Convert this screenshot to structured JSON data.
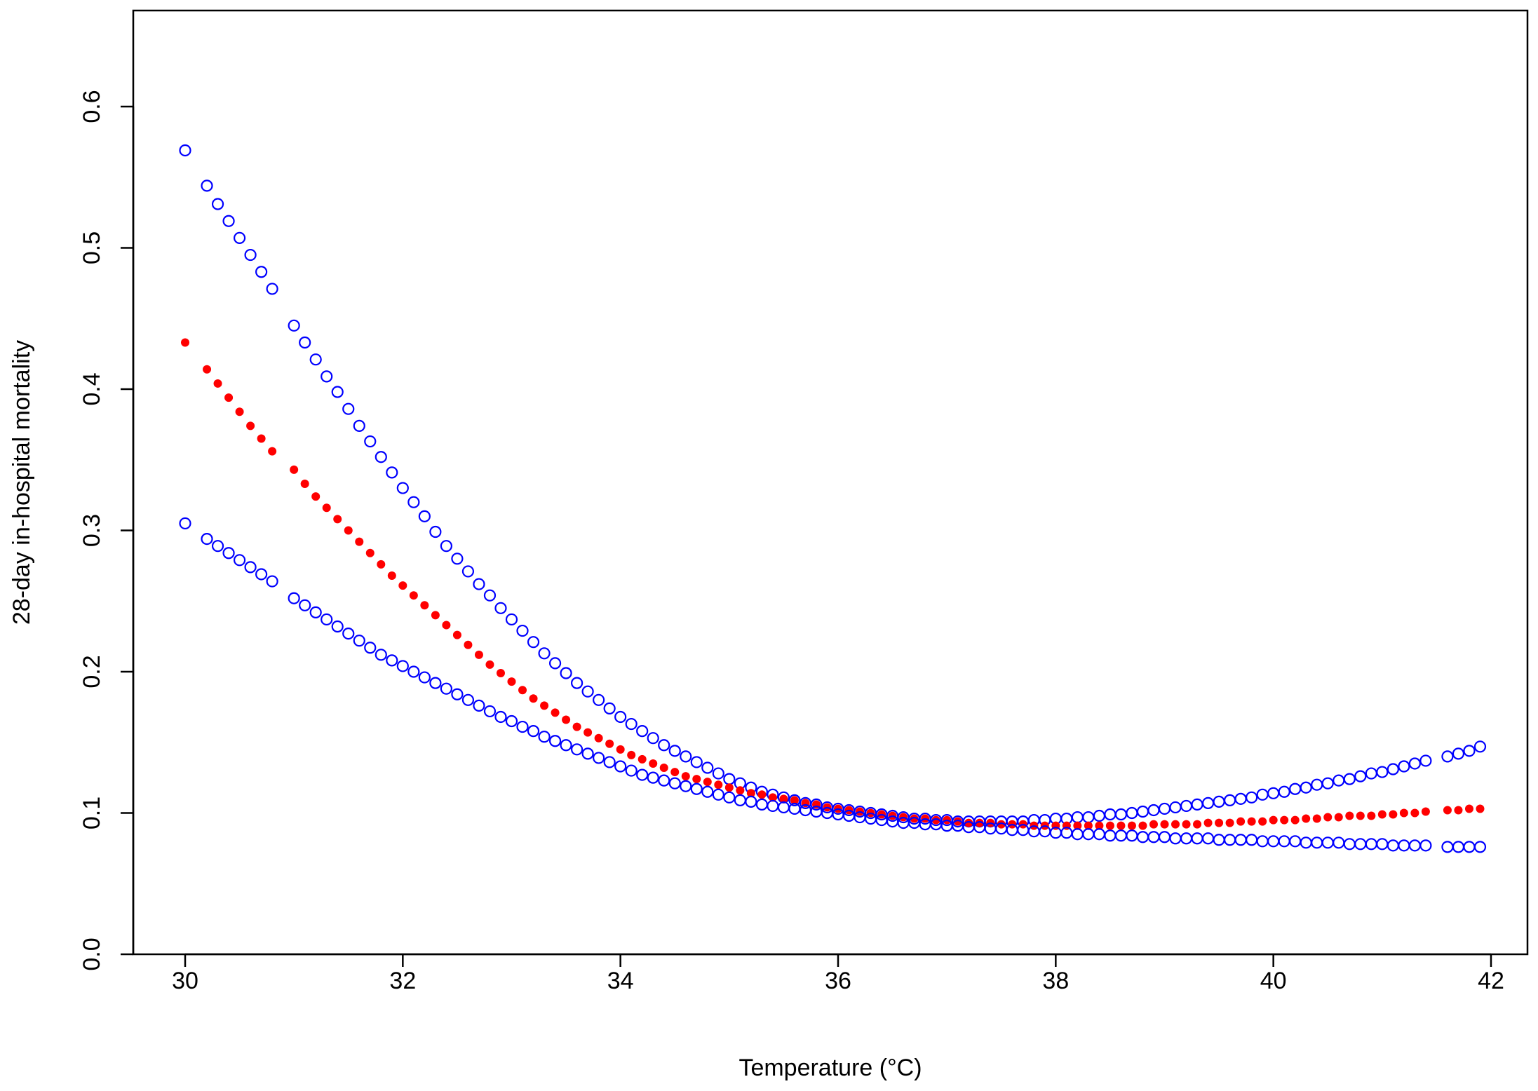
{
  "chart_data": {
    "type": "scatter",
    "title": "",
    "xlabel": "Temperature (°C)",
    "ylabel": "28-day in-hospital mortality",
    "xlim": [
      29.5,
      42.5
    ],
    "ylim": [
      0.0,
      0.66
    ],
    "x_ticks": [
      30,
      32,
      34,
      36,
      38,
      40,
      42
    ],
    "x_tick_labels": [
      "30",
      "32",
      "34",
      "36",
      "38",
      "40",
      "42"
    ],
    "y_ticks": [
      0.0,
      0.1,
      0.2,
      0.3,
      0.4,
      0.5,
      0.6
    ],
    "y_tick_labels": [
      "0.0",
      "0.1",
      "0.2",
      "0.3",
      "0.4",
      "0.5",
      "0.6"
    ],
    "grid": false,
    "legend": "none",
    "colors": {
      "upper_ci": "#0000ff",
      "estimate": "#ff0000",
      "lower_ci": "#0000ff"
    },
    "x": [
      30.0,
      30.2,
      30.3,
      30.4,
      30.5,
      30.6,
      30.7,
      30.8,
      31.0,
      31.1,
      31.2,
      31.3,
      31.4,
      31.5,
      31.6,
      31.7,
      31.8,
      31.9,
      32.0,
      32.1,
      32.2,
      32.3,
      32.4,
      32.5,
      32.6,
      32.7,
      32.8,
      32.9,
      33.0,
      33.1,
      33.2,
      33.3,
      33.4,
      33.5,
      33.6,
      33.7,
      33.8,
      33.9,
      34.0,
      34.1,
      34.2,
      34.3,
      34.4,
      34.5,
      34.6,
      34.7,
      34.8,
      34.9,
      35.0,
      35.1,
      35.2,
      35.3,
      35.4,
      35.5,
      35.6,
      35.7,
      35.8,
      35.9,
      36.0,
      36.1,
      36.2,
      36.3,
      36.4,
      36.5,
      36.6,
      36.7,
      36.8,
      36.9,
      37.0,
      37.1,
      37.2,
      37.3,
      37.4,
      37.5,
      37.6,
      37.7,
      37.8,
      37.9,
      38.0,
      38.1,
      38.2,
      38.3,
      38.4,
      38.5,
      38.6,
      38.7,
      38.8,
      38.9,
      39.0,
      39.1,
      39.2,
      39.3,
      39.4,
      39.5,
      39.6,
      39.7,
      39.8,
      39.9,
      40.0,
      40.1,
      40.2,
      40.3,
      40.4,
      40.5,
      40.6,
      40.7,
      40.8,
      40.9,
      41.0,
      41.1,
      41.2,
      41.3,
      41.4,
      41.6,
      41.7,
      41.8,
      41.9
    ],
    "series": [
      {
        "marker": "open-circle",
        "values": [
          0.569,
          0.544,
          0.531,
          0.519,
          0.507,
          0.495,
          0.483,
          0.471,
          0.445,
          0.433,
          0.421,
          0.409,
          0.398,
          0.386,
          0.374,
          0.363,
          0.352,
          0.341,
          0.33,
          0.32,
          0.31,
          0.299,
          0.289,
          0.28,
          0.271,
          0.262,
          0.254,
          0.245,
          0.237,
          0.229,
          0.221,
          0.213,
          0.206,
          0.199,
          0.192,
          0.186,
          0.18,
          0.174,
          0.168,
          0.163,
          0.158,
          0.153,
          0.148,
          0.144,
          0.14,
          0.136,
          0.132,
          0.128,
          0.124,
          0.121,
          0.118,
          0.115,
          0.113,
          0.111,
          0.109,
          0.107,
          0.106,
          0.104,
          0.103,
          0.102,
          0.101,
          0.1,
          0.099,
          0.098,
          0.097,
          0.096,
          0.096,
          0.095,
          0.095,
          0.094,
          0.094,
          0.094,
          0.094,
          0.094,
          0.094,
          0.094,
          0.095,
          0.095,
          0.096,
          0.096,
          0.097,
          0.097,
          0.098,
          0.099,
          0.099,
          0.1,
          0.101,
          0.102,
          0.103,
          0.104,
          0.105,
          0.106,
          0.107,
          0.108,
          0.109,
          0.11,
          0.111,
          0.113,
          0.114,
          0.115,
          0.117,
          0.118,
          0.12,
          0.121,
          0.123,
          0.124,
          0.126,
          0.128,
          0.129,
          0.131,
          0.133,
          0.135,
          0.137,
          0.14,
          0.142,
          0.144,
          0.147
        ]
      },
      {
        "marker": "filled-dot",
        "values": [
          0.433,
          0.414,
          0.404,
          0.394,
          0.384,
          0.374,
          0.365,
          0.356,
          0.343,
          0.333,
          0.324,
          0.316,
          0.308,
          0.3,
          0.292,
          0.284,
          0.276,
          0.268,
          0.261,
          0.254,
          0.247,
          0.24,
          0.233,
          0.226,
          0.219,
          0.212,
          0.205,
          0.199,
          0.193,
          0.187,
          0.181,
          0.176,
          0.171,
          0.166,
          0.161,
          0.157,
          0.153,
          0.149,
          0.145,
          0.141,
          0.138,
          0.135,
          0.132,
          0.129,
          0.126,
          0.124,
          0.122,
          0.12,
          0.118,
          0.116,
          0.114,
          0.113,
          0.111,
          0.11,
          0.109,
          0.107,
          0.106,
          0.104,
          0.103,
          0.102,
          0.101,
          0.1,
          0.099,
          0.098,
          0.097,
          0.096,
          0.096,
          0.095,
          0.095,
          0.094,
          0.093,
          0.093,
          0.093,
          0.092,
          0.092,
          0.092,
          0.091,
          0.091,
          0.091,
          0.091,
          0.091,
          0.091,
          0.091,
          0.091,
          0.091,
          0.091,
          0.091,
          0.092,
          0.092,
          0.092,
          0.092,
          0.092,
          0.093,
          0.093,
          0.093,
          0.094,
          0.094,
          0.094,
          0.095,
          0.095,
          0.095,
          0.096,
          0.096,
          0.097,
          0.097,
          0.098,
          0.098,
          0.098,
          0.099,
          0.099,
          0.1,
          0.1,
          0.101,
          0.102,
          0.102,
          0.103,
          0.103
        ]
      },
      {
        "marker": "open-circle",
        "values": [
          0.305,
          0.294,
          0.289,
          0.284,
          0.279,
          0.274,
          0.269,
          0.264,
          0.252,
          0.247,
          0.242,
          0.237,
          0.232,
          0.227,
          0.222,
          0.217,
          0.212,
          0.208,
          0.204,
          0.2,
          0.196,
          0.192,
          0.188,
          0.184,
          0.18,
          0.176,
          0.172,
          0.168,
          0.165,
          0.161,
          0.158,
          0.154,
          0.151,
          0.148,
          0.145,
          0.142,
          0.139,
          0.136,
          0.133,
          0.13,
          0.127,
          0.125,
          0.123,
          0.121,
          0.119,
          0.117,
          0.115,
          0.113,
          0.111,
          0.109,
          0.108,
          0.106,
          0.105,
          0.104,
          0.103,
          0.102,
          0.101,
          0.1,
          0.099,
          0.098,
          0.097,
          0.096,
          0.095,
          0.094,
          0.093,
          0.093,
          0.092,
          0.092,
          0.091,
          0.091,
          0.09,
          0.09,
          0.089,
          0.089,
          0.088,
          0.088,
          0.087,
          0.087,
          0.086,
          0.086,
          0.085,
          0.085,
          0.085,
          0.084,
          0.084,
          0.084,
          0.083,
          0.083,
          0.083,
          0.082,
          0.082,
          0.082,
          0.082,
          0.081,
          0.081,
          0.081,
          0.081,
          0.08,
          0.08,
          0.08,
          0.08,
          0.079,
          0.079,
          0.079,
          0.079,
          0.078,
          0.078,
          0.078,
          0.078,
          0.077,
          0.077,
          0.077,
          0.077,
          0.076,
          0.076,
          0.076,
          0.076
        ]
      }
    ]
  }
}
